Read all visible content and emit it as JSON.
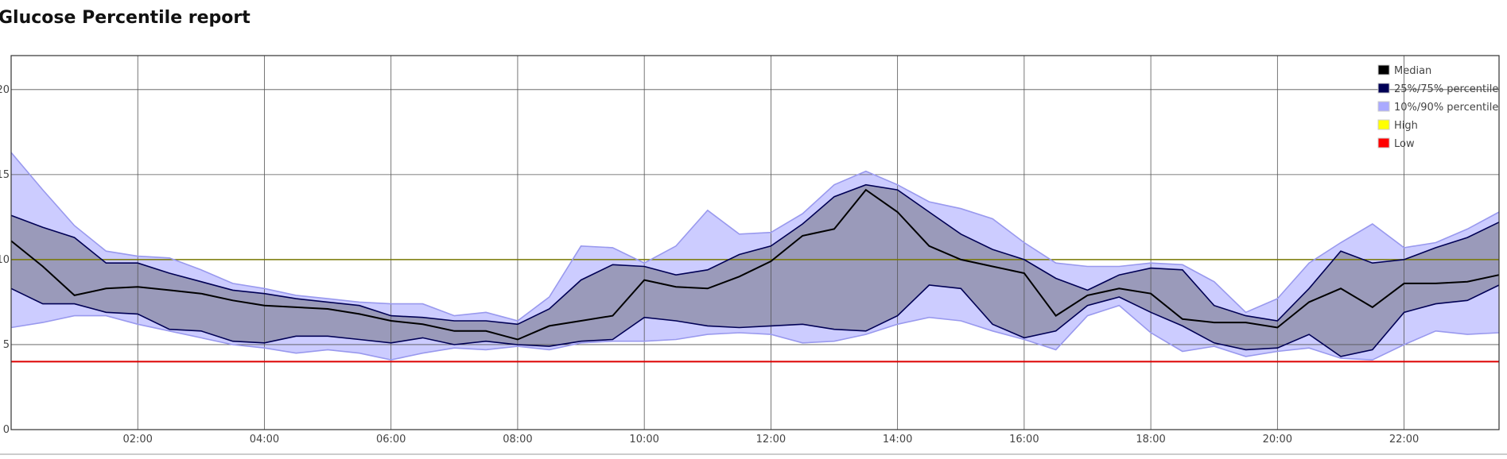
{
  "page": {
    "title": "Glucose Percentile report"
  },
  "chart_data": {
    "type": "area",
    "title": "Glucose Percentile report",
    "xlabel": "",
    "ylabel": "",
    "xlim": [
      0,
      23.5
    ],
    "ylim": [
      0,
      22
    ],
    "x_ticks": [
      {
        "value": 2,
        "label": "02:00"
      },
      {
        "value": 4,
        "label": "04:00"
      },
      {
        "value": 6,
        "label": "06:00"
      },
      {
        "value": 8,
        "label": "08:00"
      },
      {
        "value": 10,
        "label": "10:00"
      },
      {
        "value": 12,
        "label": "12:00"
      },
      {
        "value": 14,
        "label": "14:00"
      },
      {
        "value": 16,
        "label": "16:00"
      },
      {
        "value": 18,
        "label": "18:00"
      },
      {
        "value": 20,
        "label": "20:00"
      },
      {
        "value": 22,
        "label": "22:00"
      }
    ],
    "y_ticks": [
      {
        "value": 0,
        "label": "0"
      },
      {
        "value": 5,
        "label": "5"
      },
      {
        "value": 10,
        "label": "10"
      },
      {
        "value": 15,
        "label": "15"
      },
      {
        "value": 20,
        "label": "20"
      }
    ],
    "grid": true,
    "legend_position": "top-right",
    "legend": [
      {
        "key": "median",
        "label": "Median",
        "color": "#000000"
      },
      {
        "key": "p25_75",
        "label": "25%/75% percentile",
        "color": "#000055"
      },
      {
        "key": "p10_90",
        "label": "10%/90% percentile",
        "color": "#aaaaff"
      },
      {
        "key": "high",
        "label": "High",
        "color": "#ffff00"
      },
      {
        "key": "low",
        "label": "Low",
        "color": "#ff0000"
      }
    ],
    "colors": {
      "band_10_90_fill": "#ccccff",
      "band_10_90_line": "#9999ee",
      "band_25_75_fill": "#9a9aba",
      "band_25_75_line": "#000055",
      "median_line": "#000000",
      "high_line": "#777700",
      "low_line": "#dd0000",
      "grid": "#555555"
    },
    "thresholds": {
      "high": 10,
      "low": 4
    },
    "x": [
      0,
      0.5,
      1,
      1.5,
      2,
      2.5,
      3,
      3.5,
      4,
      4.5,
      5,
      5.5,
      6,
      6.5,
      7,
      7.5,
      8,
      8.5,
      9,
      9.5,
      10,
      10.5,
      11,
      11.5,
      12,
      12.5,
      13,
      13.5,
      14,
      14.5,
      15,
      15.5,
      16,
      16.5,
      17,
      17.5,
      18,
      18.5,
      19,
      19.5,
      20,
      20.5,
      21,
      21.5,
      22,
      22.5,
      23,
      23.5
    ],
    "series": [
      {
        "name": "10%",
        "key": "p10",
        "values": [
          6.0,
          6.3,
          6.7,
          6.7,
          6.2,
          5.8,
          5.4,
          5.0,
          4.8,
          4.5,
          4.7,
          4.5,
          4.1,
          4.5,
          4.8,
          4.7,
          4.9,
          4.7,
          5.1,
          5.2,
          5.2,
          5.3,
          5.6,
          5.7,
          5.6,
          5.1,
          5.2,
          5.6,
          6.2,
          6.6,
          6.4,
          5.8,
          5.3,
          4.7,
          6.7,
          7.3,
          5.7,
          4.6,
          4.9,
          4.3,
          4.6,
          4.8,
          4.2,
          4.1,
          5.0,
          5.8,
          5.6,
          5.7
        ]
      },
      {
        "name": "25%",
        "key": "p25",
        "values": [
          8.3,
          7.4,
          7.4,
          6.9,
          6.8,
          5.9,
          5.8,
          5.2,
          5.1,
          5.5,
          5.5,
          5.3,
          5.1,
          5.4,
          5.0,
          5.2,
          5.0,
          4.9,
          5.2,
          5.3,
          6.6,
          6.4,
          6.1,
          6.0,
          6.1,
          6.2,
          5.9,
          5.8,
          6.7,
          8.5,
          8.3,
          6.2,
          5.4,
          5.8,
          7.3,
          7.8,
          6.9,
          6.1,
          5.1,
          4.7,
          4.8,
          5.6,
          4.3,
          4.7,
          6.9,
          7.4,
          7.6,
          8.5
        ]
      },
      {
        "name": "Median",
        "key": "median",
        "values": [
          11.1,
          9.6,
          7.9,
          8.3,
          8.4,
          8.2,
          8.0,
          7.6,
          7.3,
          7.2,
          7.1,
          6.8,
          6.4,
          6.2,
          5.8,
          5.8,
          5.3,
          6.1,
          6.4,
          6.7,
          8.8,
          8.4,
          8.3,
          9.0,
          9.9,
          11.4,
          11.8,
          14.1,
          12.8,
          10.8,
          10.0,
          9.6,
          9.2,
          6.7,
          7.9,
          8.3,
          8.0,
          6.5,
          6.3,
          6.3,
          6.0,
          7.5,
          8.3,
          7.2,
          8.6,
          8.6,
          8.7,
          9.1
        ]
      },
      {
        "name": "75%",
        "key": "p75",
        "values": [
          12.6,
          11.9,
          11.3,
          9.8,
          9.8,
          9.2,
          8.7,
          8.2,
          8.0,
          7.7,
          7.5,
          7.3,
          6.7,
          6.6,
          6.4,
          6.4,
          6.2,
          7.1,
          8.8,
          9.7,
          9.6,
          9.1,
          9.4,
          10.3,
          10.8,
          12.1,
          13.7,
          14.4,
          14.1,
          12.8,
          11.5,
          10.6,
          10.0,
          8.9,
          8.2,
          9.1,
          9.5,
          9.4,
          7.3,
          6.7,
          6.4,
          8.3,
          10.5,
          9.8,
          10.0,
          10.7,
          11.3,
          12.2
        ]
      },
      {
        "name": "90%",
        "key": "p90",
        "values": [
          16.3,
          14.1,
          12.0,
          10.5,
          10.2,
          10.1,
          9.4,
          8.6,
          8.3,
          7.9,
          7.7,
          7.5,
          7.4,
          7.4,
          6.7,
          6.9,
          6.4,
          7.8,
          10.8,
          10.7,
          9.8,
          10.8,
          12.9,
          11.5,
          11.6,
          12.7,
          14.4,
          15.2,
          14.4,
          13.4,
          13.0,
          12.4,
          11.0,
          9.8,
          9.6,
          9.6,
          9.8,
          9.7,
          8.7,
          6.9,
          7.7,
          9.8,
          11.0,
          12.1,
          10.7,
          11.0,
          11.8,
          12.8
        ]
      }
    ]
  }
}
